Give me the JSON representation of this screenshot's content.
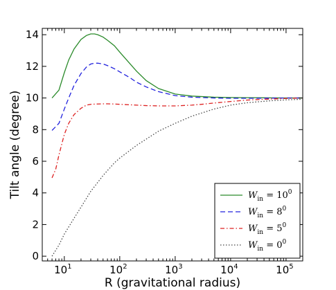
{
  "chart_data": {
    "type": "line",
    "xlabel": "R (gravitational radius)",
    "ylabel": "Tilt angle (degree)",
    "xscale": "log",
    "xlim": [
      4,
      200000
    ],
    "ylim": [
      -0.3,
      14.4
    ],
    "grid": false,
    "legend_position": "bottom-right",
    "x_ticks": [
      {
        "value": 10,
        "base": "10",
        "exp": "1"
      },
      {
        "value": 100,
        "base": "10",
        "exp": "2"
      },
      {
        "value": 1000,
        "base": "10",
        "exp": "3"
      },
      {
        "value": 10000,
        "base": "10",
        "exp": "4"
      },
      {
        "value": 100000,
        "base": "10",
        "exp": "5"
      }
    ],
    "y_ticks": [
      {
        "value": 0,
        "label": "0"
      },
      {
        "value": 2,
        "label": "2"
      },
      {
        "value": 4,
        "label": "4"
      },
      {
        "value": 6,
        "label": "6"
      },
      {
        "value": 8,
        "label": "8"
      },
      {
        "value": 10,
        "label": "10"
      },
      {
        "value": 12,
        "label": "12"
      },
      {
        "value": 14,
        "label": "14"
      }
    ],
    "series": [
      {
        "name": "W_in = 10^0",
        "legend_base": "W",
        "legend_sub": "in",
        "legend_eq": " = 10",
        "legend_sup": "0",
        "color": "#2a8a2a",
        "dash": "",
        "x": [
          6,
          8,
          10,
          12,
          15,
          20,
          25,
          30,
          35,
          40,
          50,
          60,
          80,
          100,
          150,
          200,
          300,
          500,
          1000,
          2000,
          5000,
          10000,
          20000,
          50000,
          100000,
          200000
        ],
        "y": [
          10.0,
          10.5,
          11.6,
          12.4,
          13.1,
          13.7,
          13.95,
          14.05,
          14.05,
          14.0,
          13.85,
          13.65,
          13.3,
          12.9,
          12.2,
          11.7,
          11.1,
          10.6,
          10.25,
          10.12,
          10.05,
          10.03,
          10.02,
          10.01,
          10.0,
          10.0
        ]
      },
      {
        "name": "W_in = 8^0",
        "legend_base": "W",
        "legend_sub": "in",
        "legend_eq": " = 8",
        "legend_sup": "0",
        "color": "#2020dd",
        "dash": "7,4",
        "x": [
          6,
          8,
          10,
          12,
          15,
          20,
          25,
          30,
          35,
          40,
          50,
          60,
          80,
          100,
          150,
          200,
          300,
          500,
          1000,
          2000,
          5000,
          10000,
          20000,
          50000,
          100000,
          200000
        ],
        "y": [
          7.95,
          8.4,
          9.3,
          10.0,
          10.8,
          11.55,
          11.95,
          12.15,
          12.2,
          12.2,
          12.15,
          12.05,
          11.85,
          11.65,
          11.3,
          11.0,
          10.7,
          10.4,
          10.15,
          10.05,
          10.0,
          9.98,
          9.98,
          9.99,
          10.0,
          10.0
        ]
      },
      {
        "name": "W_in = 5^0",
        "legend_base": "W",
        "legend_sub": "in",
        "legend_eq": " = 5",
        "legend_sup": "0",
        "color": "#dd2020",
        "dash": "6,3,1.5,3",
        "x": [
          6,
          7,
          8,
          10,
          12,
          15,
          20,
          25,
          30,
          40,
          50,
          60,
          80,
          100,
          150,
          200,
          300,
          500,
          1000,
          2000,
          3000,
          5000,
          10000,
          20000,
          50000,
          100000,
          200000
        ],
        "y": [
          4.95,
          5.5,
          6.4,
          7.7,
          8.4,
          8.95,
          9.35,
          9.55,
          9.6,
          9.62,
          9.63,
          9.63,
          9.62,
          9.6,
          9.57,
          9.55,
          9.52,
          9.5,
          9.5,
          9.55,
          9.6,
          9.68,
          9.78,
          9.87,
          9.93,
          9.97,
          10.0
        ]
      },
      {
        "name": "W_in = 0^0",
        "legend_base": "W",
        "legend_sub": "in",
        "legend_eq": " = 0",
        "legend_sup": "0",
        "color": "#444444",
        "dash": "1.5,2.5",
        "x": [
          6,
          8,
          10,
          15,
          20,
          30,
          50,
          80,
          100,
          200,
          500,
          1000,
          2000,
          5000,
          10000,
          20000,
          50000,
          100000,
          200000
        ],
        "y": [
          0.0,
          0.7,
          1.4,
          2.4,
          3.1,
          4.1,
          5.1,
          5.9,
          6.2,
          7.0,
          7.9,
          8.4,
          8.85,
          9.3,
          9.55,
          9.7,
          9.82,
          9.88,
          9.92
        ]
      }
    ]
  }
}
